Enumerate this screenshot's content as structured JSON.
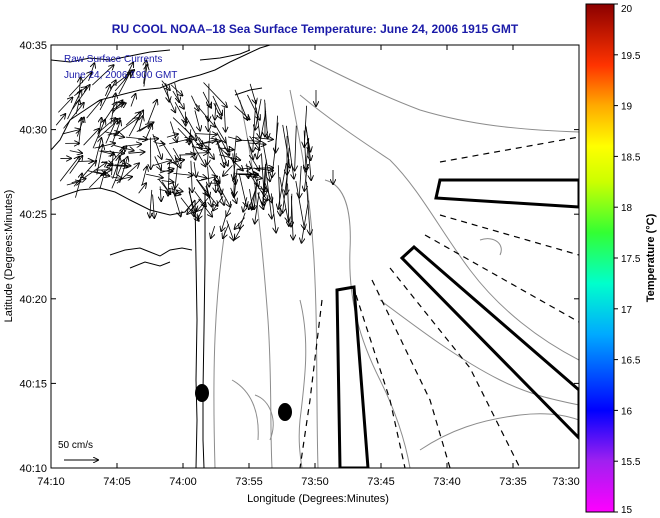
{
  "title": "RU COOL   NOAA–18  Sea Surface Temperature:  June 24, 2006 1915 GMT",
  "inset": {
    "line1": "Raw Surface Currents",
    "line2": "June 24, 2006   1900 GMT"
  },
  "axes": {
    "xlabel": "Longitude (Degrees:Minutes)",
    "ylabel": "Latitude (Degrees:Minutes)",
    "xticks": [
      "74:10",
      "74:05",
      "74:00",
      "73:55",
      "73:50",
      "73:45",
      "73:40",
      "73:35",
      "73:30"
    ],
    "yticks": [
      "40:35",
      "40:30",
      "40:25",
      "40:20",
      "40:15",
      "40:10"
    ]
  },
  "colorbar": {
    "label": "Temperature (°C)",
    "ticks": [
      "20",
      "19.5",
      "19",
      "18.5",
      "18",
      "17.5",
      "17",
      "16.5",
      "16",
      "15.5",
      "15"
    ],
    "min": 15,
    "max": 20
  },
  "scale_vector": {
    "label": "50 cm/s"
  },
  "chart_data": {
    "type": "map",
    "x_range_deg": [
      -74.1667,
      -73.5
    ],
    "y_range_deg": [
      40.1667,
      40.5833
    ],
    "vector_field": "raw surface currents (HF radar), arrows concentrated near 40:25–40:33N, 73:55–74:10W",
    "markers": [
      {
        "name": "mooring-1",
        "lon": "74:00",
        "lat": "40:14.5"
      },
      {
        "name": "mooring-2",
        "lon": "73:57",
        "lat": "40:13.5"
      }
    ]
  },
  "colors": {
    "title": "#1a1aa8",
    "land": "#ffffff",
    "contour": "#8c8c8c",
    "coastline": "#000000"
  }
}
